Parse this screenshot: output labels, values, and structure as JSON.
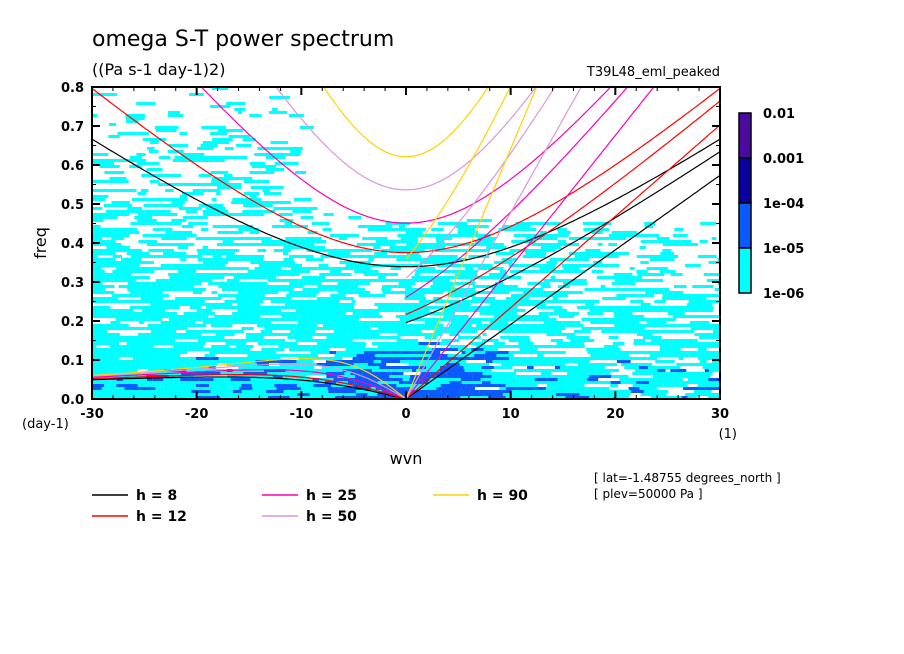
{
  "chart_data": {
    "type": "heatmap",
    "title": "omega S-T power spectrum",
    "subtitle": "((Pa s-1 day-1)2)",
    "run_label": "T39L48_eml_peaked",
    "xlabel": "wvn",
    "ylabel": "freq",
    "xunits": "(1)",
    "yunits": "(day-1)",
    "xlim": [
      -30,
      30
    ],
    "ylim": [
      0,
      0.8
    ],
    "x_ticks": [
      "-30",
      "-20",
      "-10",
      "0",
      "10",
      "20",
      "30"
    ],
    "x_tick_values": [
      -30,
      -20,
      -10,
      0,
      10,
      20,
      30
    ],
    "y_ticks": [
      "0.0",
      "0.1",
      "0.2",
      "0.3",
      "0.4",
      "0.5",
      "0.6",
      "0.7",
      "0.8"
    ],
    "y_tick_values": [
      0,
      0.1,
      0.2,
      0.3,
      0.4,
      0.5,
      0.6,
      0.7,
      0.8
    ],
    "colorbar": {
      "levels": [
        "0.01",
        "0.001",
        "1e-04",
        "1e-05",
        "1e-06"
      ],
      "colors": [
        "#4b0aa0",
        "#0a00a0",
        "#0a5aff",
        "#00ffff"
      ]
    },
    "dispersion_curves": [
      {
        "label": "h =  8",
        "color": "#000000",
        "h": 8
      },
      {
        "label": "h = 12",
        "color": "#ff0000",
        "h": 12
      },
      {
        "label": "h = 25",
        "color": "#ff00b4",
        "h": 25
      },
      {
        "label": "h = 50",
        "color": "#dc96dc",
        "h": 50
      },
      {
        "label": "h = 90",
        "color": "#ffd200",
        "h": 90
      }
    ],
    "annotations": [
      "[ lat=-1.48755 degrees_north ]",
      "[ plev=50000 Pa ]"
    ]
  }
}
